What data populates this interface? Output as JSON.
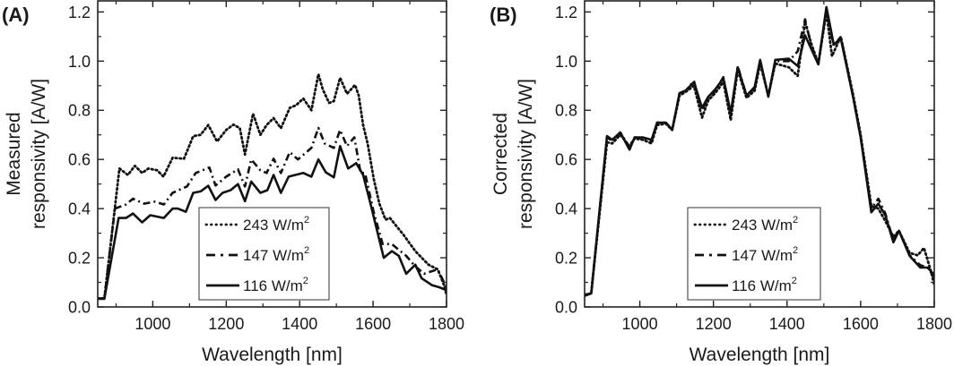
{
  "chart_data": [
    {
      "type": "line",
      "panel_label": "(A)",
      "title": "",
      "xlabel": "Wavelength [nm]",
      "ylabel_lines": [
        "Measured",
        "responsivity [A/W]"
      ],
      "xlim": [
        850,
        1800
      ],
      "ylim": [
        0,
        1.245
      ],
      "xticks": [
        1000,
        1200,
        1400,
        1600,
        1800
      ],
      "xticks_minor": [
        900,
        1100,
        1300,
        1500,
        1700
      ],
      "yticks": [
        0.0,
        0.2,
        0.4,
        0.6,
        0.8,
        1.0,
        1.2
      ],
      "yticks_minor": [
        0.1,
        0.3,
        0.5,
        0.7,
        0.9,
        1.1
      ],
      "grid": false,
      "legend_position": "bottom-center",
      "series": [
        {
          "name": "243 W/m2",
          "label": "243 W/m",
          "label_sup": "2",
          "style": "dotted",
          "x": [
            850,
            868,
            909,
            932,
            951,
            971,
            988,
            1012,
            1029,
            1054,
            1085,
            1110,
            1130,
            1151,
            1175,
            1200,
            1220,
            1237,
            1251,
            1273,
            1293,
            1310,
            1329,
            1349,
            1373,
            1390,
            1410,
            1432,
            1451,
            1463,
            1480,
            1493,
            1510,
            1529,
            1551,
            1561,
            1573,
            1585,
            1602,
            1617,
            1634,
            1646,
            1683,
            1715,
            1751,
            1776,
            1793,
            1800
          ],
          "y": [
            0.035,
            0.035,
            0.563,
            0.537,
            0.574,
            0.545,
            0.563,
            0.556,
            0.53,
            0.607,
            0.603,
            0.695,
            0.7,
            0.74,
            0.673,
            0.72,
            0.742,
            0.727,
            0.62,
            0.786,
            0.7,
            0.74,
            0.768,
            0.727,
            0.81,
            0.82,
            0.848,
            0.8,
            0.947,
            0.885,
            0.83,
            0.837,
            0.932,
            0.867,
            0.903,
            0.86,
            0.74,
            0.665,
            0.52,
            0.42,
            0.355,
            0.362,
            0.293,
            0.227,
            0.172,
            0.153,
            0.09,
            0.05
          ]
        },
        {
          "name": "147 W/m2",
          "label": "147 W/m",
          "label_sup": "2",
          "style": "dashdot",
          "x": [
            850,
            868,
            897,
            927,
            946,
            976,
            1005,
            1030,
            1054,
            1093,
            1117,
            1154,
            1171,
            1200,
            1232,
            1251,
            1268,
            1293,
            1310,
            1329,
            1349,
            1373,
            1395,
            1432,
            1451,
            1468,
            1493,
            1510,
            1529,
            1549,
            1566,
            1578,
            1602,
            1626,
            1651,
            1690,
            1715,
            1739,
            1776,
            1797,
            1800
          ],
          "y": [
            0.035,
            0.035,
            0.4,
            0.417,
            0.44,
            0.42,
            0.428,
            0.417,
            0.464,
            0.49,
            0.545,
            0.567,
            0.494,
            0.53,
            0.56,
            0.49,
            0.6,
            0.556,
            0.545,
            0.603,
            0.545,
            0.63,
            0.6,
            0.647,
            0.728,
            0.665,
            0.647,
            0.72,
            0.654,
            0.69,
            0.545,
            0.545,
            0.384,
            0.256,
            0.256,
            0.208,
            0.165,
            0.135,
            0.153,
            0.088,
            0.08
          ]
        },
        {
          "name": "116 W/m2",
          "label": "116 W/m",
          "label_sup": "2",
          "style": "solid",
          "x": [
            850,
            868,
            907,
            927,
            946,
            971,
            993,
            1030,
            1054,
            1068,
            1090,
            1110,
            1130,
            1151,
            1171,
            1190,
            1212,
            1232,
            1251,
            1268,
            1293,
            1312,
            1329,
            1349,
            1370,
            1410,
            1432,
            1451,
            1471,
            1493,
            1510,
            1532,
            1554,
            1573,
            1593,
            1629,
            1651,
            1670,
            1690,
            1715,
            1732,
            1761,
            1780,
            1797,
            1800
          ],
          "y": [
            0.033,
            0.033,
            0.362,
            0.362,
            0.38,
            0.344,
            0.373,
            0.362,
            0.4,
            0.4,
            0.387,
            0.464,
            0.47,
            0.493,
            0.435,
            0.464,
            0.475,
            0.5,
            0.43,
            0.51,
            0.464,
            0.475,
            0.537,
            0.464,
            0.53,
            0.545,
            0.53,
            0.6,
            0.548,
            0.527,
            0.654,
            0.563,
            0.585,
            0.537,
            0.42,
            0.2,
            0.227,
            0.208,
            0.135,
            0.172,
            0.117,
            0.088,
            0.08,
            0.07,
            0.065
          ]
        }
      ]
    },
    {
      "type": "line",
      "panel_label": "(B)",
      "title": "",
      "xlabel": "Wavelength [nm]",
      "ylabel_lines": [
        "Corrected",
        "responsivity [A/W]"
      ],
      "xlim": [
        850,
        1800
      ],
      "ylim": [
        0,
        1.245
      ],
      "xticks": [
        1000,
        1200,
        1400,
        1600,
        1800
      ],
      "xticks_minor": [
        900,
        1100,
        1300,
        1500,
        1700
      ],
      "yticks": [
        0.0,
        0.2,
        0.4,
        0.6,
        0.8,
        1.0,
        1.2
      ],
      "yticks_minor": [
        0.1,
        0.3,
        0.5,
        0.7,
        0.9,
        1.1
      ],
      "grid": false,
      "legend_position": "bottom-center",
      "series": [
        {
          "name": "243 W/m2",
          "label": "243 W/m",
          "label_sup": "2",
          "style": "dotted",
          "x": [
            850,
            868,
            911,
            925,
            947,
            972,
            986,
            1008,
            1032,
            1047,
            1071,
            1088,
            1108,
            1125,
            1147,
            1169,
            1186,
            1205,
            1227,
            1247,
            1266,
            1290,
            1312,
            1327,
            1349,
            1368,
            1405,
            1429,
            1449,
            1466,
            1485,
            1507,
            1522,
            1546,
            1580,
            1600,
            1629,
            1648,
            1667,
            1689,
            1704,
            1733,
            1755,
            1772,
            1790,
            1800
          ],
          "y": [
            0.05,
            0.055,
            0.67,
            0.665,
            0.7,
            0.655,
            0.685,
            0.68,
            0.665,
            0.74,
            0.745,
            0.72,
            0.86,
            0.875,
            0.9,
            0.77,
            0.84,
            0.87,
            0.915,
            0.76,
            0.965,
            0.85,
            0.88,
            0.99,
            0.86,
            0.99,
            0.975,
            0.94,
            1.16,
            1.07,
            0.99,
            1.2,
            1.02,
            1.1,
            0.86,
            0.7,
            0.41,
            0.4,
            0.35,
            0.285,
            0.31,
            0.22,
            0.21,
            0.24,
            0.15,
            0.09
          ]
        },
        {
          "name": "147 W/m2",
          "label": "147 W/m",
          "label_sup": "2",
          "style": "dashdot",
          "x": [
            850,
            868,
            911,
            925,
            947,
            972,
            986,
            1008,
            1032,
            1047,
            1071,
            1088,
            1108,
            1125,
            1147,
            1169,
            1186,
            1205,
            1227,
            1247,
            1266,
            1290,
            1312,
            1327,
            1349,
            1368,
            1405,
            1429,
            1449,
            1466,
            1485,
            1507,
            1527,
            1546,
            1580,
            1600,
            1629,
            1648,
            1667,
            1689,
            1704,
            1733,
            1762,
            1782,
            1800
          ],
          "y": [
            0.05,
            0.055,
            0.69,
            0.675,
            0.71,
            0.65,
            0.69,
            0.685,
            0.675,
            0.75,
            0.75,
            0.72,
            0.87,
            0.88,
            0.92,
            0.8,
            0.85,
            0.88,
            0.935,
            0.78,
            0.98,
            0.86,
            0.89,
            1.0,
            0.86,
            1.0,
            1.0,
            1.04,
            1.17,
            1.06,
            0.99,
            1.21,
            1.06,
            1.1,
            0.85,
            0.69,
            0.4,
            0.44,
            0.38,
            0.27,
            0.31,
            0.21,
            0.17,
            0.16,
            0.12
          ]
        },
        {
          "name": "116 W/m2",
          "label": "116 W/m",
          "label_sup": "2",
          "style": "solid",
          "x": [
            850,
            868,
            911,
            925,
            947,
            972,
            986,
            1008,
            1032,
            1047,
            1071,
            1088,
            1108,
            1125,
            1147,
            1169,
            1186,
            1205,
            1227,
            1247,
            1266,
            1290,
            1312,
            1327,
            1349,
            1368,
            1405,
            1429,
            1449,
            1485,
            1507,
            1527,
            1546,
            1580,
            1600,
            1629,
            1648,
            1667,
            1689,
            1704,
            1733,
            1762,
            1782,
            1800
          ],
          "y": [
            0.045,
            0.055,
            0.695,
            0.68,
            0.71,
            0.64,
            0.69,
            0.69,
            0.68,
            0.75,
            0.75,
            0.72,
            0.87,
            0.88,
            0.915,
            0.81,
            0.855,
            0.885,
            0.93,
            0.79,
            0.975,
            0.86,
            0.895,
            1.005,
            0.855,
            1.005,
            1.01,
            0.98,
            1.105,
            0.987,
            1.22,
            1.067,
            1.093,
            0.85,
            0.69,
            0.385,
            0.42,
            0.373,
            0.263,
            0.31,
            0.208,
            0.16,
            0.16,
            0.13
          ]
        }
      ]
    }
  ]
}
